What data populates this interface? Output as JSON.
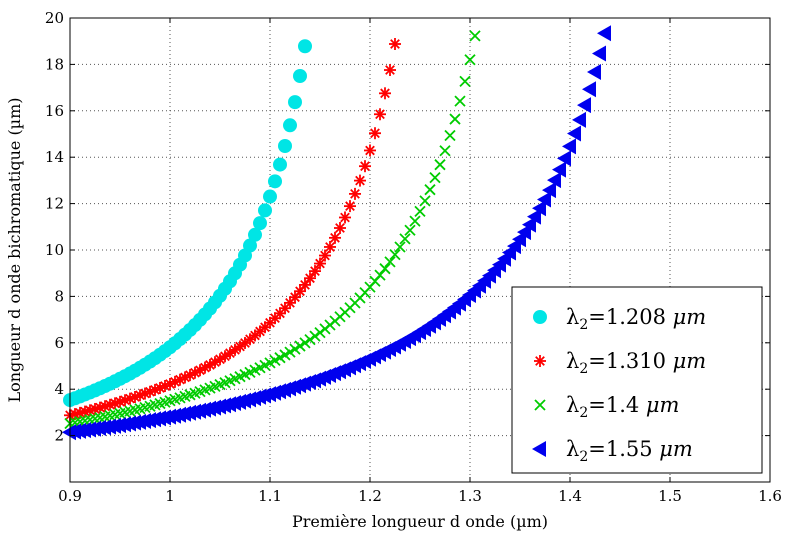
{
  "chart_data": {
    "type": "scatter",
    "title": "",
    "xlabel": "Première longueur d onde (µm)",
    "ylabel": "Longueur d onde bichromatique (µm)",
    "xlim": [
      0.9,
      1.6
    ],
    "ylim": [
      0,
      20
    ],
    "xticks": [
      "0.9",
      "1",
      "1.1",
      "1.2",
      "1.3",
      "1.4",
      "1.5",
      "1.6"
    ],
    "yticks": [
      "2",
      "4",
      "6",
      "8",
      "10",
      "12",
      "14",
      "16",
      "18",
      "20"
    ],
    "grid": true,
    "legend_position": "bottom-right",
    "series": [
      {
        "name": "λ2=1.208 μm",
        "lambda2": 1.208,
        "color": "#00e5e5",
        "marker": "circle"
      },
      {
        "name": "λ2=1.310 μm",
        "lambda2": 1.31,
        "color": "#ff0000",
        "marker": "star"
      },
      {
        "name": "λ2=1.4 μm",
        "lambda2": 1.4,
        "color": "#00cc00",
        "marker": "x"
      },
      {
        "name": "λ2=1.55 μm",
        "lambda2": 1.55,
        "color": "#0000ee",
        "marker": "triangle-left"
      }
    ],
    "legend": [
      {
        "sym": "λ",
        "sub": "2",
        "rest": "=1.208 ",
        "unit": "μm"
      },
      {
        "sym": "λ",
        "sub": "2",
        "rest": "=1.310 ",
        "unit": "μm"
      },
      {
        "sym": "λ",
        "sub": "2",
        "rest": "=1.4 ",
        "unit": "μm"
      },
      {
        "sym": "λ",
        "sub": "2",
        "rest": "=1.55 ",
        "unit": "μm"
      }
    ]
  }
}
